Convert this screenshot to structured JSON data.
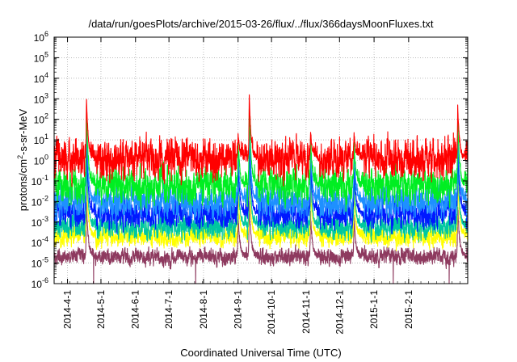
{
  "chart_data": {
    "type": "line",
    "title": "/data/run/goesPlots/archive/2015-03-26/flux/../flux/366daysMoonFluxes.txt",
    "xlabel": "Coordinated Universal Time (UTC)",
    "ylabel": "protons/cm²-s-sr-MeV",
    "y_scale": "log",
    "ylim": [
      1e-06,
      1000000.0
    ],
    "xlim": [
      "2014-03-20",
      "2015-03-26"
    ],
    "grid": true,
    "legend": "none",
    "y_ticks": [
      {
        "base": "10",
        "exp": "-6",
        "value": 1e-06
      },
      {
        "base": "10",
        "exp": "-5",
        "value": 1e-05
      },
      {
        "base": "10",
        "exp": "-4",
        "value": 0.0001
      },
      {
        "base": "10",
        "exp": "-3",
        "value": 0.001
      },
      {
        "base": "10",
        "exp": "-2",
        "value": 0.01
      },
      {
        "base": "10",
        "exp": "-1",
        "value": 0.1
      },
      {
        "base": "10",
        "exp": "0",
        "value": 1
      },
      {
        "base": "10",
        "exp": "1",
        "value": 10
      },
      {
        "base": "10",
        "exp": "2",
        "value": 100
      },
      {
        "base": "10",
        "exp": "3",
        "value": 1000
      },
      {
        "base": "10",
        "exp": "4",
        "value": 10000
      },
      {
        "base": "10",
        "exp": "5",
        "value": 100000
      },
      {
        "base": "10",
        "exp": "6",
        "value": 1000000
      }
    ],
    "x_ticks": [
      {
        "label": "2014-4-1",
        "date": "2014-04-01"
      },
      {
        "label": "2014-5-1",
        "date": "2014-05-01"
      },
      {
        "label": "2014-6-1",
        "date": "2014-06-01"
      },
      {
        "label": "2014-7-1",
        "date": "2014-07-01"
      },
      {
        "label": "2014-8-1",
        "date": "2014-08-01"
      },
      {
        "label": "2014-9-1",
        "date": "2014-09-01"
      },
      {
        "label": "2014-10-1",
        "date": "2014-10-01"
      },
      {
        "label": "2014-11-1",
        "date": "2014-11-01"
      },
      {
        "label": "2014-12-1",
        "date": "2014-12-01"
      },
      {
        "label": "2015-1-1",
        "date": "2015-01-01"
      },
      {
        "label": "2015-2-1",
        "date": "2015-02-01"
      }
    ],
    "series": [
      {
        "color": "#8e3a5f",
        "baseline": 2e-05
      },
      {
        "color": "#ffff00",
        "baseline": 0.0002
      },
      {
        "color": "#00c8a0",
        "baseline": 0.0006
      },
      {
        "color": "#0018ff",
        "baseline": 0.0025
      },
      {
        "color": "#1e90ff",
        "baseline": 0.01
      },
      {
        "color": "#00ee22",
        "baseline": 0.06
      },
      {
        "color": "#ff0000",
        "baseline": 1.2
      }
    ],
    "events": [
      {
        "date": "2014-04-18",
        "peak": 1200
      },
      {
        "date": "2014-09-01",
        "peak": 20
      },
      {
        "date": "2014-09-11",
        "peak": 2000
      },
      {
        "date": "2014-11-05",
        "peak": 30
      },
      {
        "date": "2014-12-14",
        "peak": 20
      },
      {
        "date": "2015-03-17",
        "peak": 500
      }
    ]
  }
}
